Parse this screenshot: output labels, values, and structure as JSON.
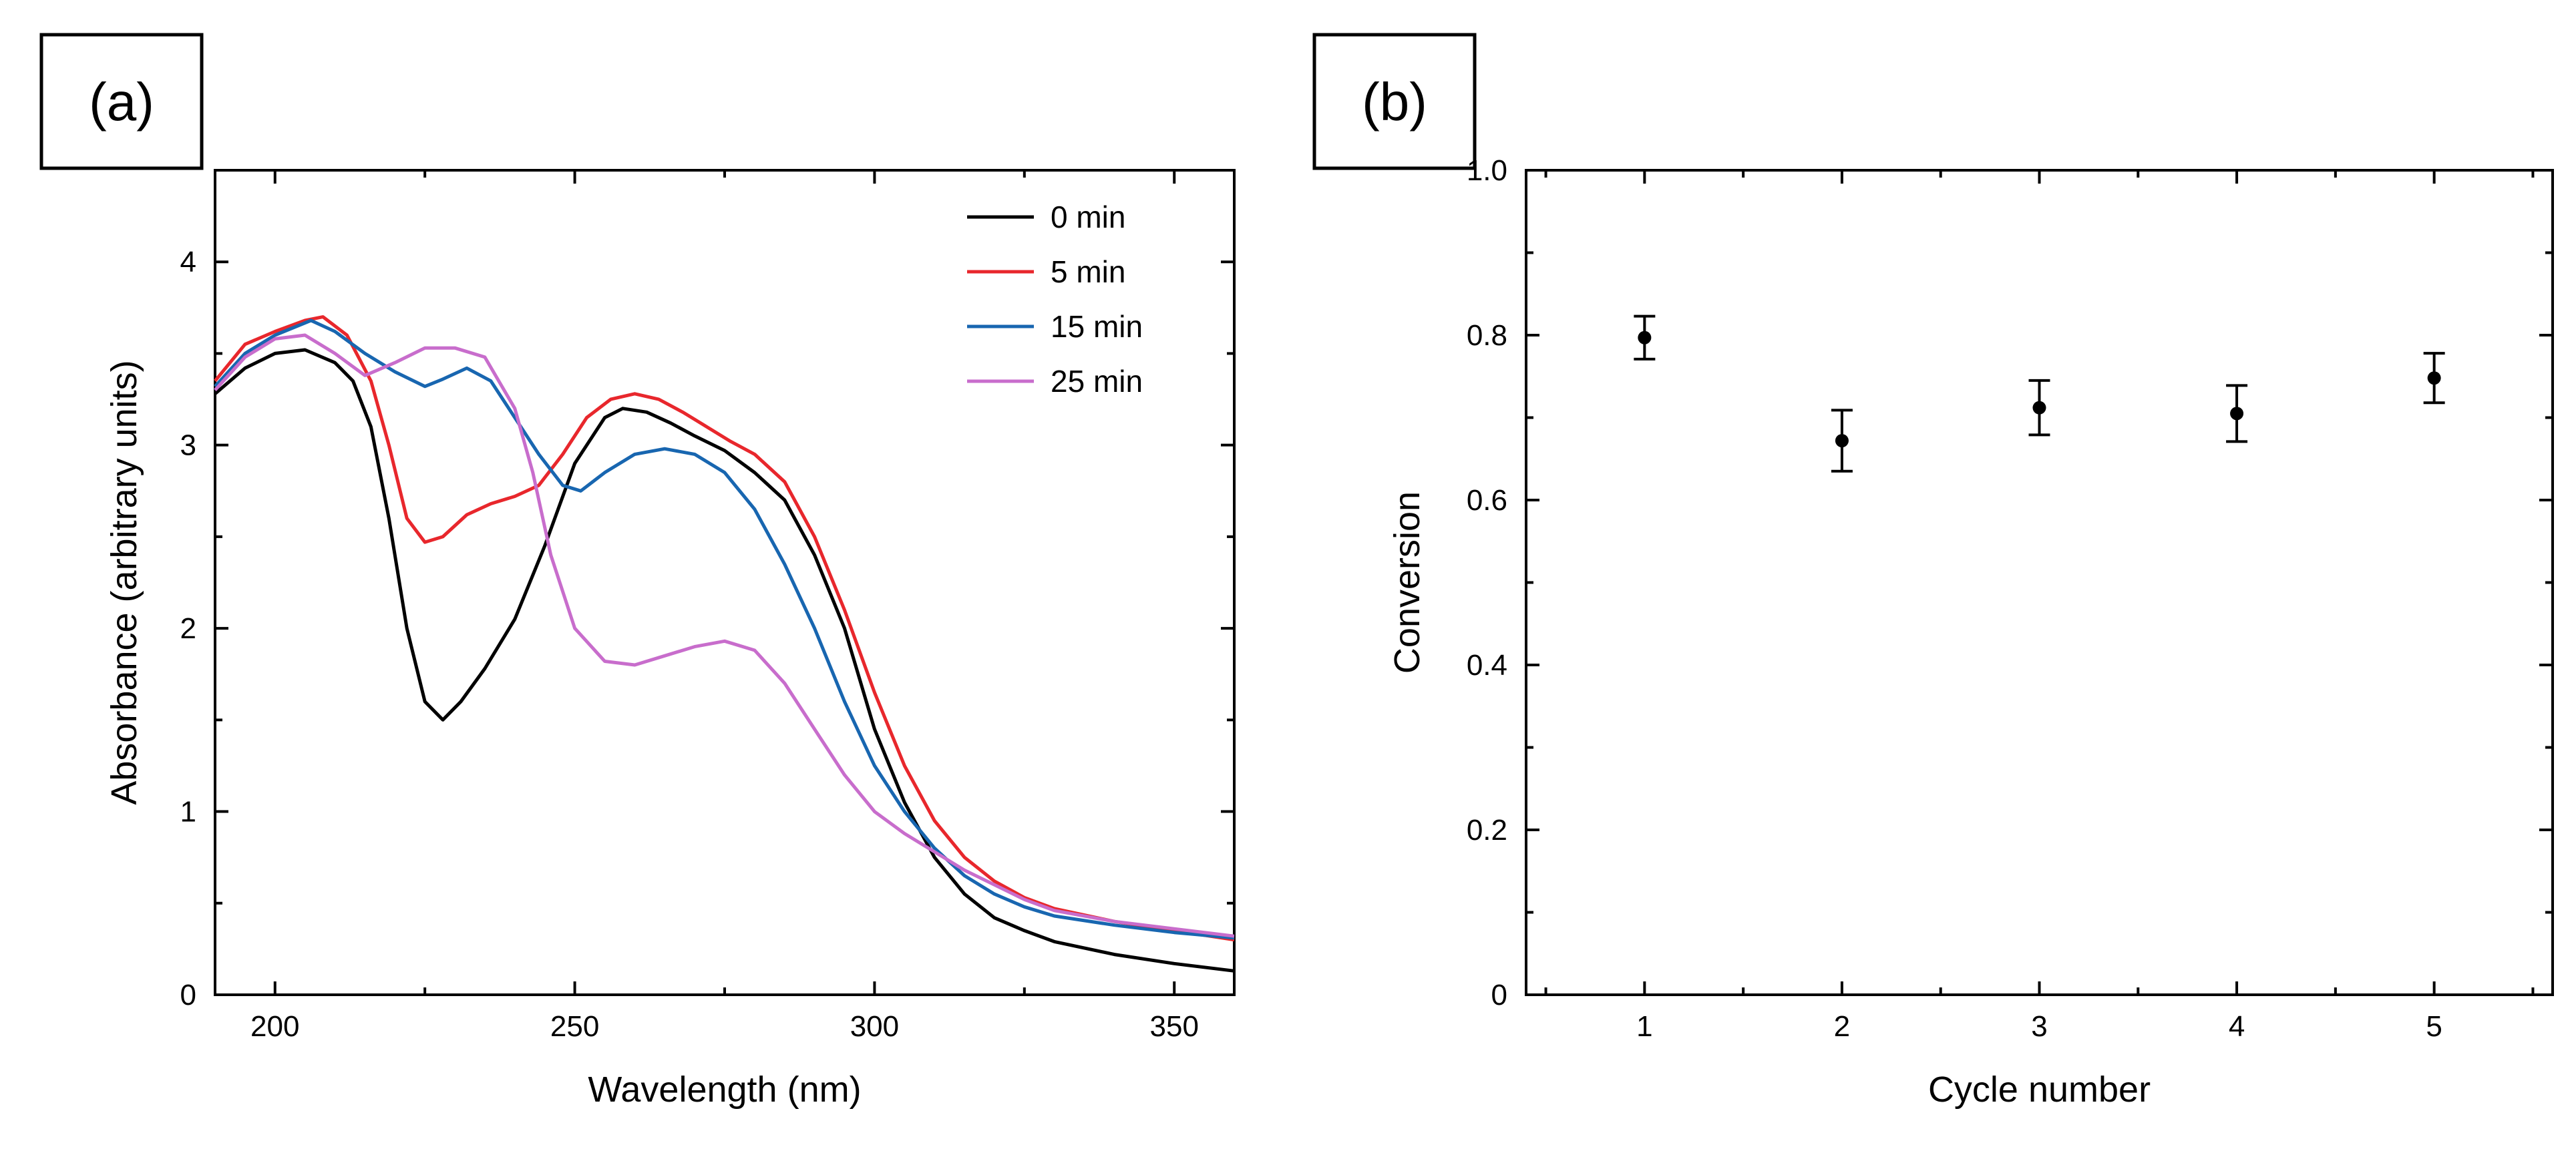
{
  "chart_data": [
    {
      "panel_label": "(a)",
      "type": "line",
      "title": "",
      "xlabel": "Wavelength (nm)",
      "ylabel": "Absorbance (arbitrary units)",
      "xlim": [
        190,
        360
      ],
      "ylim": [
        0,
        4.5
      ],
      "xticks": [
        200,
        250,
        300,
        350
      ],
      "yticks": [
        0,
        1,
        2,
        3,
        4
      ],
      "legend_position": "top-right",
      "series": [
        {
          "name": "0 min",
          "color": "#000000",
          "x": [
            190,
            195,
            200,
            205,
            210,
            213,
            216,
            219,
            222,
            225,
            228,
            231,
            235,
            240,
            245,
            250,
            255,
            258,
            262,
            266,
            270,
            275,
            280,
            285,
            290,
            295,
            300,
            305,
            310,
            315,
            320,
            325,
            330,
            340,
            350,
            360
          ],
          "y": [
            3.28,
            3.42,
            3.5,
            3.52,
            3.45,
            3.35,
            3.1,
            2.6,
            2.0,
            1.6,
            1.5,
            1.6,
            1.78,
            2.05,
            2.45,
            2.9,
            3.15,
            3.2,
            3.18,
            3.12,
            3.05,
            2.97,
            2.85,
            2.7,
            2.4,
            2.0,
            1.45,
            1.05,
            0.75,
            0.55,
            0.42,
            0.35,
            0.29,
            0.22,
            0.17,
            0.13
          ]
        },
        {
          "name": "5 min",
          "color": "#e8272c",
          "x": [
            190,
            195,
            200,
            205,
            208,
            212,
            216,
            219,
            222,
            225,
            228,
            232,
            236,
            240,
            244,
            248,
            252,
            256,
            260,
            264,
            268,
            272,
            276,
            280,
            285,
            290,
            295,
            300,
            305,
            310,
            315,
            320,
            325,
            330,
            340,
            350,
            360
          ],
          "y": [
            3.35,
            3.55,
            3.62,
            3.68,
            3.7,
            3.6,
            3.35,
            3.0,
            2.6,
            2.47,
            2.5,
            2.62,
            2.68,
            2.72,
            2.78,
            2.95,
            3.15,
            3.25,
            3.28,
            3.25,
            3.18,
            3.1,
            3.02,
            2.95,
            2.8,
            2.5,
            2.1,
            1.65,
            1.25,
            0.95,
            0.75,
            0.62,
            0.53,
            0.47,
            0.4,
            0.35,
            0.3
          ]
        },
        {
          "name": "15 min",
          "color": "#1866b0",
          "x": [
            190,
            195,
            200,
            206,
            210,
            215,
            220,
            225,
            228,
            232,
            236,
            240,
            244,
            248,
            251,
            255,
            260,
            265,
            270,
            275,
            280,
            285,
            290,
            295,
            300,
            305,
            310,
            315,
            320,
            325,
            330,
            340,
            350,
            360
          ],
          "y": [
            3.32,
            3.5,
            3.6,
            3.68,
            3.62,
            3.5,
            3.4,
            3.32,
            3.36,
            3.42,
            3.35,
            3.15,
            2.95,
            2.78,
            2.75,
            2.85,
            2.95,
            2.98,
            2.95,
            2.85,
            2.65,
            2.35,
            2.0,
            1.6,
            1.25,
            1.0,
            0.8,
            0.65,
            0.55,
            0.48,
            0.43,
            0.38,
            0.34,
            0.31
          ]
        },
        {
          "name": "25 min",
          "color": "#c86dcc",
          "x": [
            190,
            195,
            200,
            205,
            210,
            215,
            220,
            225,
            230,
            235,
            240,
            243,
            246,
            250,
            255,
            260,
            265,
            270,
            275,
            280,
            285,
            290,
            295,
            300,
            305,
            310,
            315,
            320,
            325,
            330,
            340,
            350,
            360
          ],
          "y": [
            3.3,
            3.48,
            3.58,
            3.6,
            3.5,
            3.38,
            3.45,
            3.53,
            3.53,
            3.48,
            3.2,
            2.85,
            2.4,
            2.0,
            1.82,
            1.8,
            1.85,
            1.9,
            1.93,
            1.88,
            1.7,
            1.45,
            1.2,
            1.0,
            0.88,
            0.78,
            0.68,
            0.6,
            0.52,
            0.46,
            0.4,
            0.36,
            0.32
          ]
        }
      ]
    },
    {
      "panel_label": "(b)",
      "type": "scatter",
      "title": "",
      "xlabel": "Cycle number",
      "ylabel": "Conversion",
      "xlim": [
        0.4,
        5.6
      ],
      "ylim": [
        0,
        1.0
      ],
      "xticks": [
        1,
        2,
        3,
        4,
        5
      ],
      "yticks": [
        0,
        0.2,
        0.4,
        0.6,
        0.8,
        1.0
      ],
      "ytick_labels": [
        "0",
        "0.2",
        "0.4",
        "0.6",
        "0.8",
        "1.0"
      ],
      "series": [
        {
          "color": "#000000",
          "x": [
            1,
            2,
            3,
            4,
            5
          ],
          "y": [
            0.797,
            0.672,
            0.712,
            0.705,
            0.748
          ],
          "yerr": [
            0.026,
            0.037,
            0.033,
            0.034,
            0.03
          ]
        }
      ]
    }
  ]
}
